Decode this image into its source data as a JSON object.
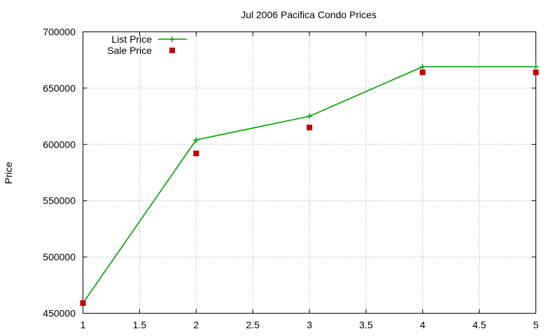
{
  "chart_data": {
    "type": "line",
    "title": "Jul 2006 Pacifica Condo Prices",
    "xlabel": "",
    "ylabel": "Price",
    "xlim": [
      1,
      5
    ],
    "ylim": [
      450000,
      700000
    ],
    "grid": true,
    "legend_position": "top-left",
    "x_ticks": [
      "1",
      "1.5",
      "2",
      "2.5",
      "3",
      "3.5",
      "4",
      "4.5",
      "5"
    ],
    "y_ticks": [
      "450000",
      "500000",
      "550000",
      "600000",
      "650000",
      "700000"
    ],
    "series": [
      {
        "name": "List Price",
        "style": "lines+points",
        "color": "#00a000",
        "marker": "plus",
        "x": [
          1,
          2,
          3,
          4,
          5
        ],
        "y": [
          459000,
          604000,
          625000,
          669000,
          669000
        ]
      },
      {
        "name": "Sale Price",
        "style": "points",
        "color": "#c00000",
        "marker": "square",
        "x": [
          1,
          2,
          3,
          4,
          5
        ],
        "y": [
          459000,
          592000,
          615000,
          664000,
          664000
        ]
      }
    ]
  }
}
